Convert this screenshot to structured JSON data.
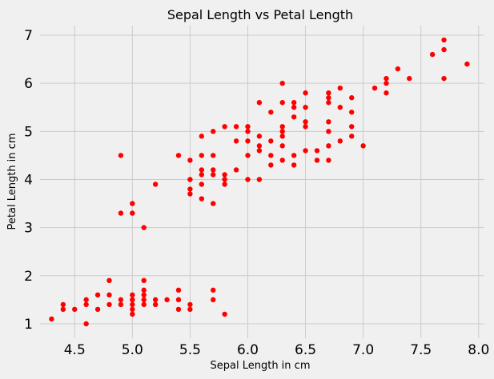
{
  "chart_data": {
    "type": "scatter",
    "title": "Sepal Length vs Petal Length",
    "xlabel": "Sepal Length in cm",
    "ylabel": "Petal Length in cm",
    "xlim": [
      4.2,
      8.05
    ],
    "ylim": [
      0.7,
      7.2
    ],
    "xticks": [
      4.5,
      5.0,
      5.5,
      6.0,
      6.5,
      7.0,
      7.5,
      8.0
    ],
    "xtick_labels": [
      "4.5",
      "5.0",
      "5.5",
      "6.0",
      "6.5",
      "7.0",
      "7.5",
      "8.0"
    ],
    "yticks": [
      1,
      2,
      3,
      4,
      5,
      6,
      7
    ],
    "ytick_labels": [
      "1",
      "2",
      "3",
      "4",
      "5",
      "6",
      "7"
    ],
    "grid": true,
    "marker_color": "#ff0000",
    "background_color": "#f0f0f0",
    "grid_color": "#cbcbcb",
    "points": [
      [
        4.3,
        1.1
      ],
      [
        4.4,
        1.3
      ],
      [
        4.4,
        1.4
      ],
      [
        4.5,
        1.3
      ],
      [
        4.6,
        1.0
      ],
      [
        4.6,
        1.4
      ],
      [
        4.6,
        1.5
      ],
      [
        4.7,
        1.3
      ],
      [
        4.7,
        1.6
      ],
      [
        4.8,
        1.4
      ],
      [
        4.8,
        1.6
      ],
      [
        4.8,
        1.9
      ],
      [
        4.9,
        1.4
      ],
      [
        4.9,
        1.5
      ],
      [
        4.9,
        3.3
      ],
      [
        4.9,
        4.5
      ],
      [
        5.0,
        1.2
      ],
      [
        5.0,
        1.3
      ],
      [
        5.0,
        1.4
      ],
      [
        5.0,
        1.5
      ],
      [
        5.0,
        1.6
      ],
      [
        5.0,
        3.3
      ],
      [
        5.0,
        3.5
      ],
      [
        5.1,
        1.4
      ],
      [
        5.1,
        1.5
      ],
      [
        5.1,
        1.6
      ],
      [
        5.1,
        1.7
      ],
      [
        5.1,
        1.9
      ],
      [
        5.1,
        3.0
      ],
      [
        5.2,
        1.4
      ],
      [
        5.2,
        1.5
      ],
      [
        5.2,
        3.9
      ],
      [
        5.3,
        1.5
      ],
      [
        5.4,
        1.3
      ],
      [
        5.4,
        1.5
      ],
      [
        5.4,
        1.7
      ],
      [
        5.4,
        4.5
      ],
      [
        5.5,
        1.3
      ],
      [
        5.5,
        1.4
      ],
      [
        5.5,
        3.7
      ],
      [
        5.5,
        3.8
      ],
      [
        5.5,
        4.0
      ],
      [
        5.5,
        4.4
      ],
      [
        5.6,
        3.6
      ],
      [
        5.6,
        3.9
      ],
      [
        5.6,
        4.1
      ],
      [
        5.6,
        4.2
      ],
      [
        5.6,
        4.5
      ],
      [
        5.6,
        4.9
      ],
      [
        5.7,
        1.5
      ],
      [
        5.7,
        1.7
      ],
      [
        5.7,
        3.5
      ],
      [
        5.7,
        4.1
      ],
      [
        5.7,
        4.2
      ],
      [
        5.7,
        4.5
      ],
      [
        5.7,
        5.0
      ],
      [
        5.8,
        1.2
      ],
      [
        5.8,
        3.9
      ],
      [
        5.8,
        4.0
      ],
      [
        5.8,
        4.1
      ],
      [
        5.8,
        5.1
      ],
      [
        5.9,
        4.2
      ],
      [
        5.9,
        4.8
      ],
      [
        5.9,
        5.1
      ],
      [
        6.0,
        4.0
      ],
      [
        6.0,
        4.5
      ],
      [
        6.0,
        4.8
      ],
      [
        6.0,
        5.0
      ],
      [
        6.0,
        5.1
      ],
      [
        6.1,
        4.0
      ],
      [
        6.1,
        4.6
      ],
      [
        6.1,
        4.7
      ],
      [
        6.1,
        4.9
      ],
      [
        6.1,
        5.6
      ],
      [
        6.2,
        4.3
      ],
      [
        6.2,
        4.5
      ],
      [
        6.2,
        4.8
      ],
      [
        6.2,
        5.4
      ],
      [
        6.3,
        4.4
      ],
      [
        6.3,
        4.7
      ],
      [
        6.3,
        4.9
      ],
      [
        6.3,
        5.0
      ],
      [
        6.3,
        5.1
      ],
      [
        6.3,
        5.6
      ],
      [
        6.3,
        6.0
      ],
      [
        6.4,
        4.3
      ],
      [
        6.4,
        4.5
      ],
      [
        6.4,
        5.3
      ],
      [
        6.4,
        5.5
      ],
      [
        6.4,
        5.6
      ],
      [
        6.5,
        4.6
      ],
      [
        6.5,
        5.1
      ],
      [
        6.5,
        5.2
      ],
      [
        6.5,
        5.5
      ],
      [
        6.5,
        5.8
      ],
      [
        6.6,
        4.4
      ],
      [
        6.6,
        4.6
      ],
      [
        6.7,
        4.4
      ],
      [
        6.7,
        4.7
      ],
      [
        6.7,
        5.0
      ],
      [
        6.7,
        5.2
      ],
      [
        6.7,
        5.6
      ],
      [
        6.7,
        5.7
      ],
      [
        6.7,
        5.8
      ],
      [
        6.8,
        4.8
      ],
      [
        6.8,
        5.5
      ],
      [
        6.8,
        5.9
      ],
      [
        6.9,
        4.9
      ],
      [
        6.9,
        5.1
      ],
      [
        6.9,
        5.4
      ],
      [
        6.9,
        5.7
      ],
      [
        7.0,
        4.7
      ],
      [
        7.1,
        5.9
      ],
      [
        7.2,
        5.8
      ],
      [
        7.2,
        6.0
      ],
      [
        7.2,
        6.1
      ],
      [
        7.3,
        6.3
      ],
      [
        7.4,
        6.1
      ],
      [
        7.6,
        6.6
      ],
      [
        7.7,
        6.1
      ],
      [
        7.7,
        6.7
      ],
      [
        7.7,
        6.9
      ],
      [
        7.9,
        6.4
      ]
    ]
  }
}
